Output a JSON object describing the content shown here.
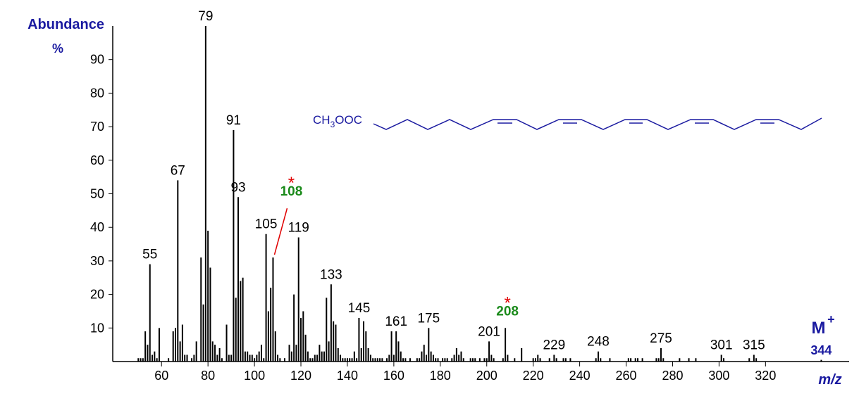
{
  "chart_data": {
    "type": "bar",
    "y_axis_label": "Abundance",
    "y_axis_unit": "%",
    "x_axis_label": "m/z",
    "color": "#000000",
    "xlim": [
      39,
      356
    ],
    "ylim": [
      0,
      100
    ],
    "xticks": [
      60,
      80,
      100,
      120,
      140,
      160,
      180,
      200,
      220,
      240,
      260,
      280,
      300,
      320
    ],
    "yticks": [
      10,
      20,
      30,
      40,
      50,
      60,
      70,
      80,
      90
    ],
    "x": [
      50,
      51,
      52,
      53,
      54,
      55,
      56,
      57,
      58,
      59,
      63,
      65,
      66,
      67,
      68,
      69,
      70,
      71,
      73,
      74,
      75,
      77,
      78,
      79,
      80,
      81,
      82,
      83,
      84,
      85,
      86,
      88,
      89,
      90,
      91,
      92,
      93,
      94,
      95,
      96,
      97,
      98,
      99,
      100,
      101,
      102,
      103,
      104,
      105,
      106,
      107,
      108,
      109,
      110,
      111,
      113,
      115,
      116,
      117,
      118,
      119,
      120,
      121,
      122,
      123,
      124,
      125,
      126,
      127,
      128,
      129,
      130,
      131,
      132,
      133,
      134,
      135,
      136,
      137,
      138,
      139,
      140,
      141,
      142,
      143,
      144,
      145,
      146,
      147,
      148,
      149,
      150,
      151,
      152,
      153,
      154,
      155,
      157,
      158,
      159,
      160,
      161,
      162,
      163,
      164,
      165,
      167,
      170,
      171,
      172,
      173,
      174,
      175,
      176,
      177,
      178,
      179,
      181,
      182,
      183,
      185,
      186,
      187,
      188,
      189,
      190,
      193,
      194,
      195,
      197,
      199,
      200,
      201,
      202,
      203,
      207,
      208,
      209,
      212,
      215,
      220,
      221,
      222,
      223,
      227,
      229,
      230,
      233,
      234,
      236,
      247,
      248,
      249,
      253,
      261,
      262,
      264,
      265,
      267,
      273,
      274,
      275,
      276,
      283,
      287,
      290,
      301,
      302,
      313,
      315,
      316,
      344
    ],
    "values": [
      1,
      1,
      1,
      9,
      5,
      29,
      2,
      3,
      1,
      10,
      1,
      9,
      10,
      54,
      6,
      11,
      2,
      2,
      1,
      2,
      6,
      31,
      17,
      100,
      39,
      28,
      6,
      5,
      2,
      4,
      1,
      11,
      2,
      2,
      69,
      19,
      49,
      24,
      25,
      3,
      3,
      2,
      2,
      1,
      2,
      3,
      5,
      1,
      38,
      15,
      22,
      31,
      9,
      2,
      1,
      1,
      5,
      3,
      20,
      5,
      37,
      13,
      15,
      8,
      3,
      1,
      1,
      2,
      2,
      5,
      3,
      3,
      19,
      6,
      23,
      12,
      11,
      4,
      2,
      1,
      1,
      1,
      1,
      1,
      3,
      1,
      13,
      4,
      12,
      9,
      4,
      2,
      1,
      1,
      1,
      1,
      1,
      1,
      2,
      9,
      2,
      9,
      6,
      3,
      1,
      1,
      1,
      1,
      1,
      3,
      5,
      2,
      10,
      3,
      2,
      1,
      1,
      1,
      1,
      1,
      1,
      2,
      4,
      2,
      3,
      1,
      1,
      1,
      1,
      1,
      1,
      1,
      6,
      2,
      1,
      1,
      10,
      2,
      1,
      4,
      1,
      1,
      2,
      1,
      1,
      2,
      1,
      1,
      1,
      1,
      1,
      3,
      1,
      1,
      1,
      1,
      1,
      1,
      1,
      1,
      1,
      4,
      1,
      1,
      1,
      1,
      2,
      1,
      1,
      2,
      1,
      0.5
    ],
    "peak_labels": [
      55,
      67,
      79,
      91,
      93,
      105,
      119,
      133,
      145,
      161,
      175,
      201,
      229,
      248,
      275,
      301,
      315
    ],
    "highlight_labels": [
      108,
      208
    ],
    "highlight_marker": "*",
    "molecular_ion_label": "M",
    "molecular_ion_charge": "+",
    "molecular_ion_mz": 344,
    "structure_label": [
      "CH",
      "3",
      "OOC"
    ]
  }
}
